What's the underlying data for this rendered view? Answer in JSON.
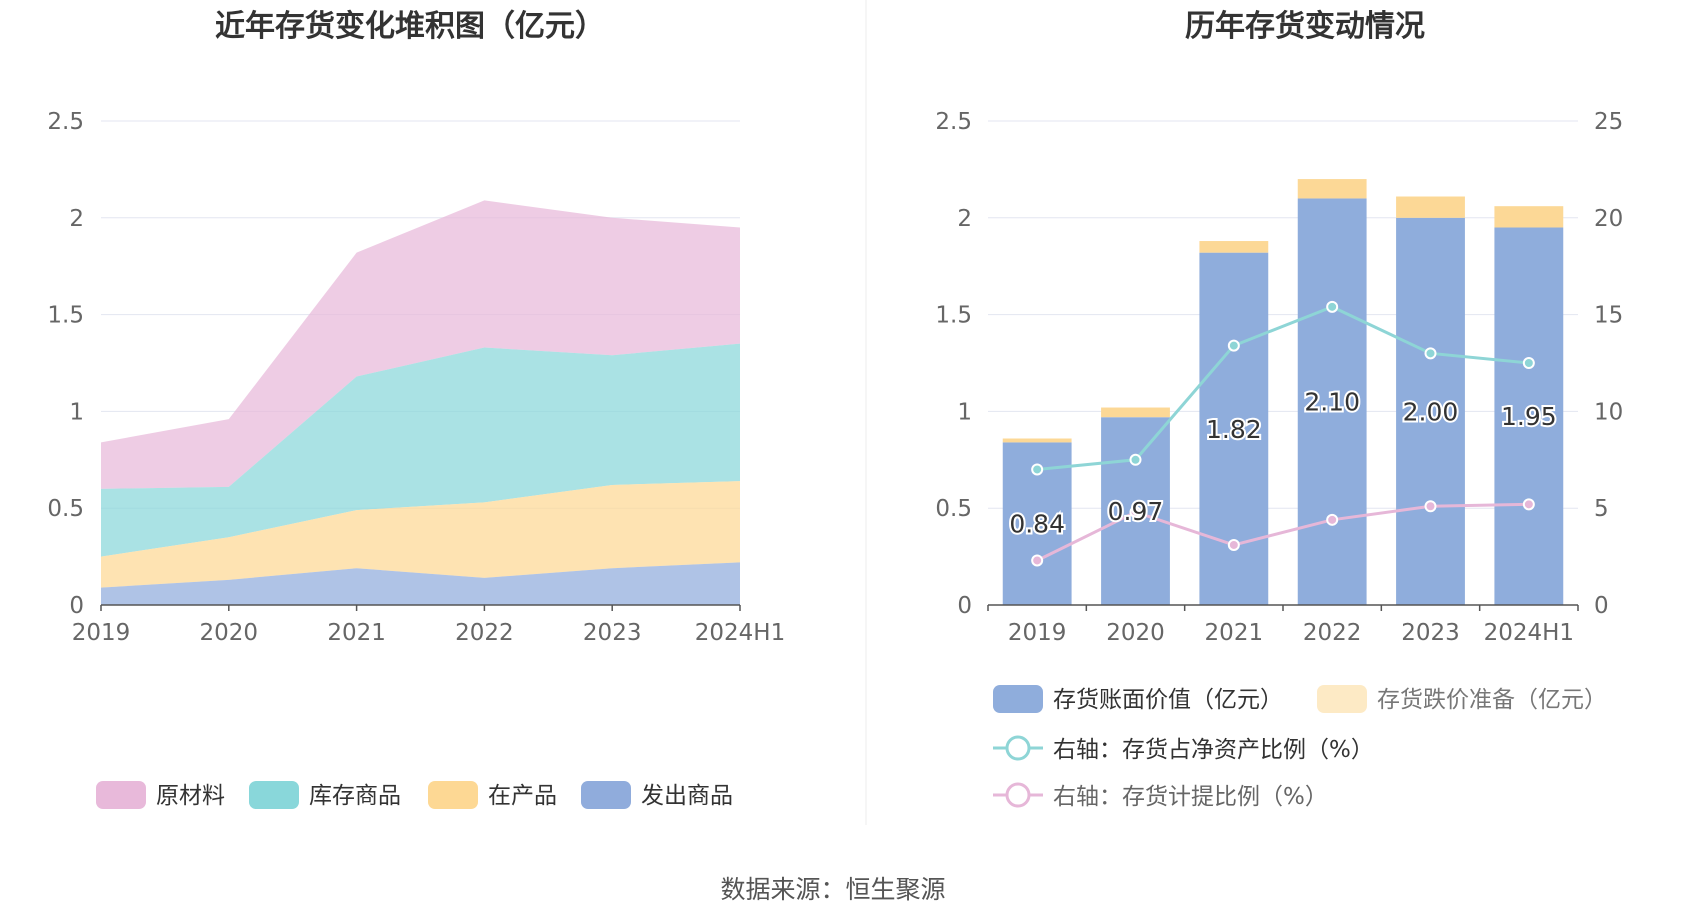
{
  "colors": {
    "raw": "#E8B9DA",
    "stock": "#89D7DA",
    "wip": "#FDD894",
    "shipped": "#90ACDC",
    "bar_book": "#8FADDC",
    "bar_provision": "#FCD896",
    "line_ratio_net": "#8ED5D6",
    "line_ratio_prov": "#E6B7D8",
    "grid": "#E3E6F1",
    "axis_text": "#666666",
    "title_text": "#333333"
  },
  "footer": {
    "source": "数据来源：恒生聚源"
  },
  "chart_data": [
    {
      "type": "area",
      "stacked": true,
      "title": "近年存货变化堆积图（亿元）",
      "categories": [
        "2019",
        "2020",
        "2021",
        "2022",
        "2023",
        "2024H1"
      ],
      "ylim": [
        0,
        2.5
      ],
      "yticks": [
        "0",
        "0.5",
        "1",
        "1.5",
        "2",
        "2.5"
      ],
      "grid": true,
      "legend_position": "bottom",
      "series": [
        {
          "name": "发出商品",
          "color_key": "shipped",
          "values": [
            0.09,
            0.13,
            0.19,
            0.14,
            0.19,
            0.22
          ]
        },
        {
          "name": "在产品",
          "color_key": "wip",
          "values": [
            0.16,
            0.22,
            0.3,
            0.39,
            0.43,
            0.42
          ]
        },
        {
          "name": "库存商品",
          "color_key": "stock",
          "values": [
            0.35,
            0.26,
            0.69,
            0.8,
            0.67,
            0.71
          ]
        },
        {
          "name": "原材料",
          "color_key": "raw",
          "values": [
            0.24,
            0.35,
            0.64,
            0.76,
            0.71,
            0.6
          ]
        }
      ],
      "legend": [
        {
          "name": "原材料",
          "color_key": "raw"
        },
        {
          "name": "库存商品",
          "color_key": "stock"
        },
        {
          "name": "在产品",
          "color_key": "wip"
        },
        {
          "name": "发出商品",
          "color_key": "shipped"
        }
      ]
    },
    {
      "type": "bar",
      "stacked": true,
      "title": "历年存货变动情况",
      "categories": [
        "2019",
        "2020",
        "2021",
        "2022",
        "2023",
        "2024H1"
      ],
      "ylim": [
        0,
        2.5
      ],
      "yticks": [
        "0",
        "0.5",
        "1",
        "1.5",
        "2",
        "2.5"
      ],
      "y2lim": [
        0,
        25
      ],
      "y2ticks": [
        "0",
        "5",
        "10",
        "15",
        "20",
        "25"
      ],
      "grid": true,
      "legend_position": "bottom",
      "series": [
        {
          "name": "存货账面价值（亿元）",
          "type": "bar",
          "axis": "left",
          "color_key": "bar_book",
          "values": [
            0.84,
            0.97,
            1.82,
            2.1,
            2.0,
            1.95
          ],
          "labels": [
            "0.84",
            "0.97",
            "1.82",
            "2.10",
            "2.00",
            "1.95"
          ]
        },
        {
          "name": "存货跌价准备（亿元）",
          "type": "bar",
          "axis": "left",
          "color_key": "bar_provision",
          "values": [
            0.02,
            0.05,
            0.06,
            0.1,
            0.11,
            0.11
          ]
        },
        {
          "name": "右轴：存货占净资产比例（%）",
          "type": "line",
          "axis": "right",
          "color_key": "line_ratio_net",
          "values": [
            7.0,
            7.5,
            13.4,
            15.4,
            13.0,
            12.5
          ]
        },
        {
          "name": "右轴：存货计提比例（%）",
          "type": "line",
          "axis": "right",
          "color_key": "line_ratio_prov",
          "values": [
            2.3,
            4.8,
            3.1,
            4.4,
            5.1,
            5.2
          ]
        }
      ]
    }
  ]
}
